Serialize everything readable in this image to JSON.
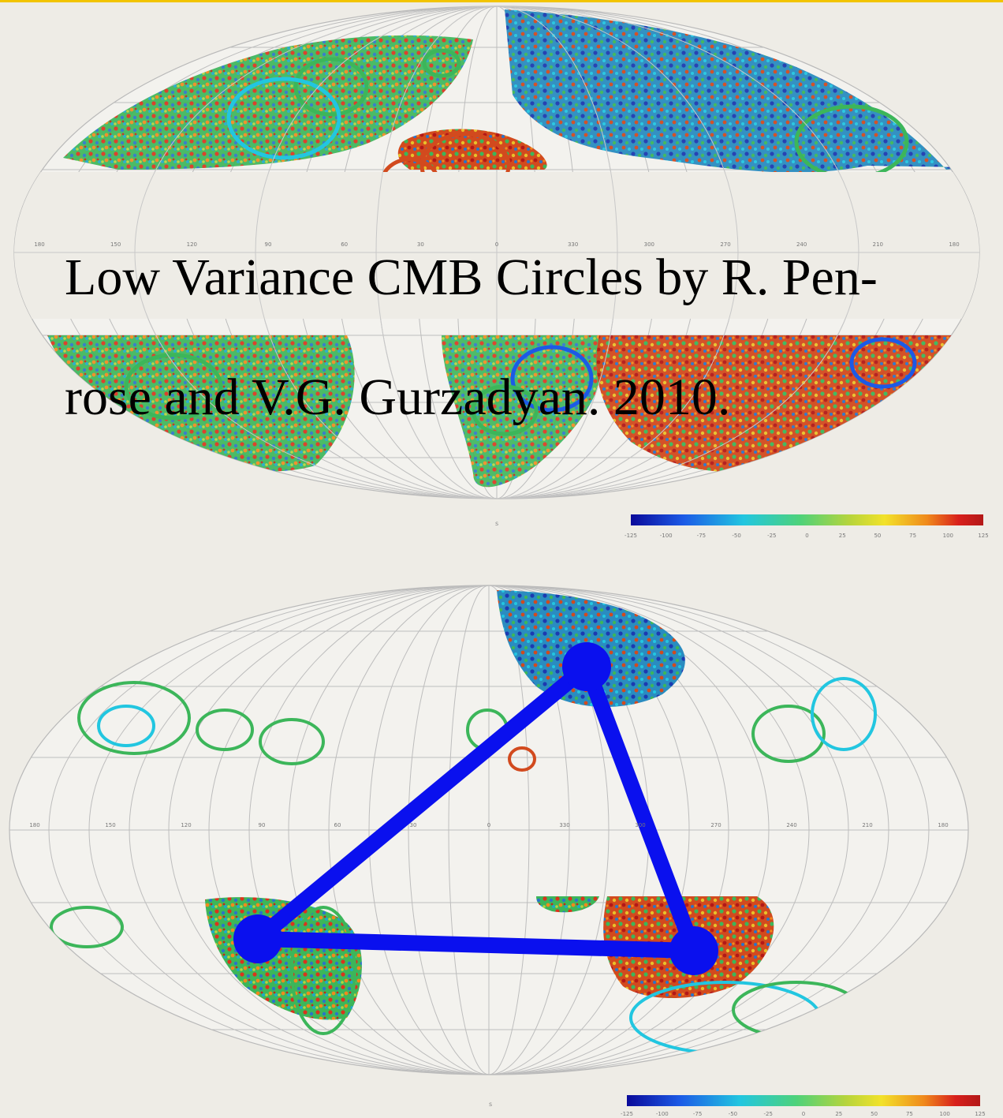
{
  "caption": {
    "line1": "Low Variance CMB Circles by R. Pen-",
    "line2": "rose and V.G. Gurzadyan. 2010."
  },
  "colors": {
    "background": "#eeece6",
    "overlay_triangle": "#0a10ee",
    "grid": "#b9b9b9",
    "colormap": [
      "#0a0a9a",
      "#1c5ae6",
      "#22c6e0",
      "#4ed27a",
      "#b6d43c",
      "#f2e22a",
      "#f08a1c",
      "#d8201c",
      "#b31818"
    ]
  },
  "maps": [
    {
      "id": "top-map",
      "projection": "mollweide",
      "meridian_labels": [
        "180",
        "150",
        "120",
        "90",
        "60",
        "30",
        "0",
        "330",
        "300",
        "270",
        "240",
        "210",
        "180"
      ]
    },
    {
      "id": "bottom-map",
      "projection": "mollweide",
      "meridian_labels": [
        "180",
        "150",
        "120",
        "90",
        "60",
        "30",
        "0",
        "330",
        "300",
        "270",
        "240",
        "210",
        "180"
      ]
    }
  ],
  "colorbar_ticks": [
    "-125",
    "-100",
    "-75",
    "-50",
    "-25",
    "0",
    "25",
    "50",
    "75",
    "100",
    "125"
  ]
}
